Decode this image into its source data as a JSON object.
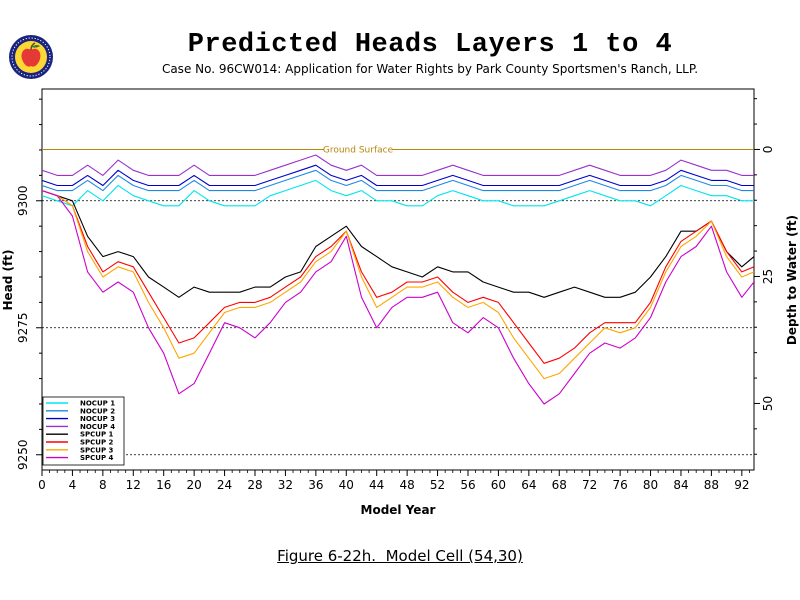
{
  "title": "Predicted Heads Layers 1 to 4",
  "subtitle": "Case No. 96CW014: Application for Water Rights by Park County Sportsmen's Ranch, LLP.",
  "caption": "Figure 6-22h.  Model Cell (54,30)",
  "logo": {
    "icon": "apple-seal-icon",
    "colors": {
      "ring": "#1a237e",
      "apple": "#e53935",
      "leaf": "#2e7d32",
      "fill": "#fdd835"
    }
  },
  "chart_data": {
    "type": "line",
    "xlabel": "Model Year",
    "ylabel": "Head (ft)",
    "y2label": "Depth to Water (ft)",
    "xlim": [
      0,
      93.6
    ],
    "ylim": [
      9247,
      9322
    ],
    "xticks": [
      0,
      4,
      8,
      12,
      16,
      20,
      24,
      28,
      32,
      36,
      40,
      44,
      48,
      52,
      56,
      60,
      64,
      68,
      72,
      76,
      80,
      84,
      88,
      92
    ],
    "yticks": [
      9250,
      9275,
      9300
    ],
    "y2ticks": [
      0,
      25,
      50
    ],
    "ground_surface": {
      "label": "Ground Surface",
      "value": 9310.1,
      "color": "#b8860b"
    },
    "reference_lines": [
      9300,
      9275,
      9250
    ],
    "legend_position": "bottom-left",
    "series": [
      {
        "name": "NOCUP 1",
        "color": "#00e5ee",
        "x": [
          0,
          2,
          4,
          6,
          8,
          10,
          12,
          14,
          16,
          18,
          20,
          22,
          24,
          26,
          28,
          30,
          32,
          34,
          36,
          38,
          40,
          42,
          44,
          46,
          48,
          50,
          52,
          54,
          56,
          58,
          60,
          62,
          64,
          66,
          68,
          70,
          72,
          74,
          76,
          78,
          80,
          82,
          84,
          86,
          88,
          90,
          92,
          93.6
        ],
        "y": [
          9301,
          9300,
          9299,
          9302,
          9300,
          9303,
          9301,
          9300,
          9299,
          9299,
          9302,
          9300,
          9299,
          9299,
          9299,
          9301,
          9302,
          9303,
          9304,
          9302,
          9301,
          9302,
          9300,
          9300,
          9299,
          9299,
          9301,
          9302,
          9301,
          9300,
          9300,
          9299,
          9299,
          9299,
          9300,
          9301,
          9302,
          9301,
          9300,
          9300,
          9299,
          9301,
          9303,
          9302,
          9301,
          9301,
          9300,
          9300
        ]
      },
      {
        "name": "NOCUP 2",
        "color": "#1e88e5",
        "x": [
          0,
          2,
          4,
          6,
          8,
          10,
          12,
          14,
          16,
          18,
          20,
          22,
          24,
          26,
          28,
          30,
          32,
          34,
          36,
          38,
          40,
          42,
          44,
          46,
          48,
          50,
          52,
          54,
          56,
          58,
          60,
          62,
          64,
          66,
          68,
          70,
          72,
          74,
          76,
          78,
          80,
          82,
          84,
          86,
          88,
          90,
          92,
          93.6
        ],
        "y": [
          9303,
          9302,
          9302,
          9304,
          9302,
          9305,
          9303,
          9302,
          9302,
          9302,
          9304,
          9302,
          9302,
          9302,
          9302,
          9303,
          9304,
          9305,
          9306,
          9304,
          9303,
          9304,
          9302,
          9302,
          9302,
          9302,
          9303,
          9304,
          9303,
          9302,
          9302,
          9302,
          9302,
          9302,
          9302,
          9303,
          9304,
          9303,
          9302,
          9302,
          9302,
          9303,
          9305,
          9304,
          9303,
          9303,
          9302,
          9302
        ]
      },
      {
        "name": "NOCUP 3",
        "color": "#0000cd",
        "x": [
          0,
          2,
          4,
          6,
          8,
          10,
          12,
          14,
          16,
          18,
          20,
          22,
          24,
          26,
          28,
          30,
          32,
          34,
          36,
          38,
          40,
          42,
          44,
          46,
          48,
          50,
          52,
          54,
          56,
          58,
          60,
          62,
          64,
          66,
          68,
          70,
          72,
          74,
          76,
          78,
          80,
          82,
          84,
          86,
          88,
          90,
          92,
          93.6
        ],
        "y": [
          9304,
          9303,
          9303,
          9305,
          9303,
          9306,
          9304,
          9303,
          9303,
          9303,
          9305,
          9303,
          9303,
          9303,
          9303,
          9304,
          9305,
          9306,
          9307,
          9305,
          9304,
          9305,
          9303,
          9303,
          9303,
          9303,
          9304,
          9305,
          9304,
          9303,
          9303,
          9303,
          9303,
          9303,
          9303,
          9304,
          9305,
          9304,
          9303,
          9303,
          9303,
          9304,
          9306,
          9305,
          9304,
          9304,
          9303,
          9303
        ]
      },
      {
        "name": "NOCUP 4",
        "color": "#9932cc",
        "x": [
          0,
          2,
          4,
          6,
          8,
          10,
          12,
          14,
          16,
          18,
          20,
          22,
          24,
          26,
          28,
          30,
          32,
          34,
          36,
          38,
          40,
          42,
          44,
          46,
          48,
          50,
          52,
          54,
          56,
          58,
          60,
          62,
          64,
          66,
          68,
          70,
          72,
          74,
          76,
          78,
          80,
          82,
          84,
          86,
          88,
          90,
          92,
          93.6
        ],
        "y": [
          9306,
          9305,
          9305,
          9307,
          9305,
          9308,
          9306,
          9305,
          9305,
          9305,
          9307,
          9305,
          9305,
          9305,
          9305,
          9306,
          9307,
          9308,
          9309,
          9307,
          9306,
          9307,
          9305,
          9305,
          9305,
          9305,
          9306,
          9307,
          9306,
          9305,
          9305,
          9305,
          9305,
          9305,
          9305,
          9306,
          9307,
          9306,
          9305,
          9305,
          9305,
          9306,
          9308,
          9307,
          9306,
          9306,
          9305,
          9305
        ]
      },
      {
        "name": "SPCUP 1",
        "color": "#000000",
        "x": [
          0,
          2,
          4,
          6,
          8,
          10,
          12,
          14,
          16,
          18,
          20,
          22,
          24,
          26,
          28,
          30,
          32,
          34,
          36,
          38,
          40,
          42,
          44,
          46,
          48,
          50,
          52,
          54,
          56,
          58,
          60,
          62,
          64,
          66,
          68,
          70,
          72,
          74,
          76,
          78,
          80,
          82,
          84,
          86,
          88,
          90,
          92,
          93.6
        ],
        "y": [
          9302,
          9301,
          9300,
          9293,
          9289,
          9290,
          9289,
          9285,
          9283,
          9281,
          9283,
          9282,
          9282,
          9282,
          9283,
          9283,
          9285,
          9286,
          9291,
          9293,
          9295,
          9291,
          9289,
          9287,
          9286,
          9285,
          9287,
          9286,
          9286,
          9284,
          9283,
          9282,
          9282,
          9281,
          9282,
          9283,
          9282,
          9281,
          9281,
          9282,
          9285,
          9289,
          9294,
          9294,
          9296,
          9290,
          9287,
          9289
        ]
      },
      {
        "name": "SPCUP 2",
        "color": "#ff0000",
        "x": [
          0,
          2,
          4,
          6,
          8,
          10,
          12,
          14,
          16,
          18,
          20,
          22,
          24,
          26,
          28,
          30,
          32,
          34,
          36,
          38,
          40,
          42,
          44,
          46,
          48,
          50,
          52,
          54,
          56,
          58,
          60,
          62,
          64,
          66,
          68,
          70,
          72,
          74,
          76,
          78,
          80,
          82,
          84,
          86,
          88,
          90,
          92,
          93.6
        ],
        "y": [
          9302,
          9301,
          9299,
          9291,
          9286,
          9288,
          9287,
          9282,
          9277,
          9272,
          9273,
          9276,
          9279,
          9280,
          9280,
          9281,
          9283,
          9285,
          9289,
          9291,
          9294,
          9286,
          9281,
          9282,
          9284,
          9284,
          9285,
          9282,
          9280,
          9281,
          9280,
          9276,
          9272,
          9268,
          9269,
          9271,
          9274,
          9276,
          9276,
          9276,
          9280,
          9287,
          9292,
          9294,
          9296,
          9290,
          9286,
          9287
        ]
      },
      {
        "name": "SPCUP 3",
        "color": "#ffa500",
        "x": [
          0,
          2,
          4,
          6,
          8,
          10,
          12,
          14,
          16,
          18,
          20,
          22,
          24,
          26,
          28,
          30,
          32,
          34,
          36,
          38,
          40,
          42,
          44,
          46,
          48,
          50,
          52,
          54,
          56,
          58,
          60,
          62,
          64,
          66,
          68,
          70,
          72,
          74,
          76,
          78,
          80,
          82,
          84,
          86,
          88,
          90,
          92,
          93.6
        ],
        "y": [
          9302,
          9301,
          9299,
          9290,
          9285,
          9287,
          9286,
          9280,
          9275,
          9269,
          9270,
          9274,
          9278,
          9279,
          9279,
          9280,
          9282,
          9284,
          9288,
          9290,
          9294,
          9285,
          9279,
          9281,
          9283,
          9283,
          9284,
          9281,
          9279,
          9280,
          9278,
          9273,
          9269,
          9265,
          9266,
          9269,
          9272,
          9275,
          9274,
          9275,
          9279,
          9286,
          9291,
          9293,
          9296,
          9289,
          9285,
          9286
        ]
      },
      {
        "name": "SPCUP 4",
        "color": "#cc00cc",
        "x": [
          0,
          2,
          4,
          6,
          8,
          10,
          12,
          14,
          16,
          18,
          20,
          22,
          24,
          26,
          28,
          30,
          32,
          34,
          36,
          38,
          40,
          42,
          44,
          46,
          48,
          50,
          52,
          54,
          56,
          58,
          60,
          62,
          64,
          66,
          68,
          70,
          72,
          74,
          76,
          78,
          80,
          82,
          84,
          86,
          88,
          90,
          92,
          93.6
        ],
        "y": [
          9302,
          9301,
          9297,
          9286,
          9282,
          9284,
          9282,
          9275,
          9270,
          9262,
          9264,
          9270,
          9276,
          9275,
          9273,
          9276,
          9280,
          9282,
          9286,
          9288,
          9293,
          9281,
          9275,
          9279,
          9281,
          9281,
          9282,
          9276,
          9274,
          9277,
          9275,
          9269,
          9264,
          9260,
          9262,
          9266,
          9270,
          9272,
          9271,
          9273,
          9277,
          9284,
          9289,
          9291,
          9295,
          9286,
          9281,
          9284
        ]
      }
    ]
  }
}
